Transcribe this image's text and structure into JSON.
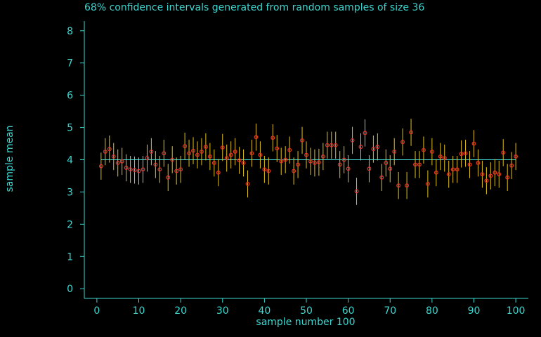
{
  "chart_data": {
    "type": "scatter",
    "title": "68% confidence intervals generated from random samples of size 36",
    "xlabel": "sample number 100",
    "ylabel": "sample mean",
    "xlim": [
      -3,
      103
    ],
    "ylim": [
      -0.3,
      8.3
    ],
    "xticks": [
      0,
      10,
      20,
      30,
      40,
      50,
      60,
      70,
      80,
      90,
      100
    ],
    "yticks": [
      0,
      1,
      2,
      3,
      4,
      5,
      6,
      7,
      8
    ],
    "reference_mean": 4.0,
    "half_width": 0.42,
    "x": [
      1,
      2,
      3,
      4,
      5,
      6,
      7,
      8,
      9,
      10,
      11,
      12,
      13,
      14,
      15,
      16,
      17,
      18,
      19,
      20,
      21,
      22,
      23,
      24,
      25,
      26,
      27,
      28,
      29,
      30,
      31,
      32,
      33,
      34,
      35,
      36,
      37,
      38,
      39,
      40,
      41,
      42,
      43,
      44,
      45,
      46,
      47,
      48,
      49,
      50,
      51,
      52,
      53,
      54,
      55,
      56,
      57,
      58,
      59,
      60,
      61,
      62,
      63,
      64,
      65,
      66,
      67,
      68,
      69,
      70,
      71,
      72,
      73,
      74,
      75,
      76,
      77,
      78,
      79,
      80,
      81,
      82,
      83,
      84,
      85,
      86,
      87,
      88,
      89,
      90,
      91,
      92,
      93,
      94,
      95,
      96,
      97,
      98,
      99,
      100
    ],
    "y": [
      3.8,
      4.25,
      4.33,
      4.1,
      3.9,
      3.95,
      3.75,
      3.7,
      3.68,
      3.65,
      3.7,
      4.05,
      4.25,
      3.85,
      3.7,
      4.2,
      3.45,
      4.0,
      3.65,
      3.7,
      4.42,
      4.2,
      4.28,
      4.15,
      4.25,
      4.4,
      4.1,
      3.9,
      3.6,
      4.38,
      4.05,
      4.15,
      4.25,
      3.98,
      3.9,
      3.25,
      4.2,
      4.7,
      4.15,
      3.7,
      3.65,
      4.68,
      4.35,
      3.95,
      4.0,
      4.3,
      3.65,
      3.85,
      4.6,
      4.15,
      3.95,
      3.9,
      3.92,
      4.1,
      4.45,
      4.45,
      4.45,
      3.85,
      4.0,
      3.72,
      4.6,
      3.02,
      4.4,
      4.83,
      3.72,
      4.33,
      4.4,
      3.45,
      3.9,
      3.72,
      4.25,
      3.2,
      4.55,
      3.2,
      4.85,
      3.85,
      3.85,
      4.3,
      3.25,
      4.25,
      3.6,
      4.1,
      4.05,
      3.55,
      3.7,
      3.7,
      4.18,
      4.2,
      3.85,
      4.5,
      3.9,
      3.55,
      3.35,
      3.5,
      3.6,
      3.55,
      4.22,
      3.45,
      3.82,
      4.1
    ]
  },
  "colors": {
    "background": "#000000",
    "axis": "#3cd6d0",
    "text": "#3cd6d0",
    "interval": "#e2c219",
    "point": "#e0312b",
    "mean_line": "#3cd6d0"
  }
}
